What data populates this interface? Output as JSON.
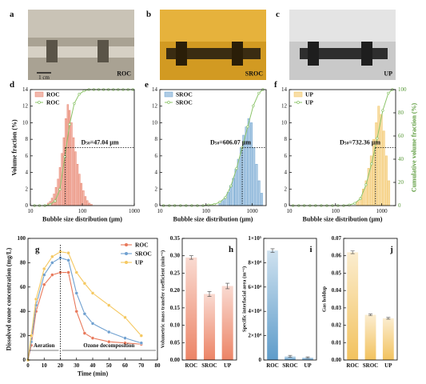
{
  "photos": [
    {
      "label": "a",
      "name": "ROC",
      "scale": "1 cm"
    },
    {
      "label": "b",
      "name": "SROC"
    },
    {
      "label": "c",
      "name": "UP"
    }
  ],
  "chart_data": [
    {
      "type": "histogram",
      "label": "d",
      "log_x": true,
      "xlim": [
        10,
        1000
      ],
      "xticks": [
        10,
        100,
        1000
      ],
      "ylim": [
        0,
        14
      ],
      "yticks": [
        0,
        2,
        4,
        6,
        8,
        10,
        12,
        14
      ],
      "y2lim": [
        0,
        100
      ],
      "ylabel": "Volume fraction (%)",
      "xlabel": "Bubble size distribution (μm)",
      "x": [
        22,
        24,
        26,
        28.5,
        31,
        34,
        37,
        40.5,
        44,
        48,
        52.5,
        57,
        62,
        68,
        74,
        81,
        88,
        96,
        105,
        115,
        125,
        137,
        150
      ],
      "series": [
        {
          "name": "ROC",
          "color": "#e8806a",
          "values": [
            0.3,
            0.5,
            0.9,
            1.4,
            2.2,
            3.2,
            4.6,
            6.3,
            8.2,
            10.5,
            12.2,
            11.5,
            10,
            8.2,
            6.5,
            5,
            3.8,
            2.7,
            1.8,
            1.1,
            0.6,
            0.3,
            0.15
          ]
        }
      ],
      "cumulative": {
        "name": "ROC",
        "color": "#8cc46a",
        "x": [
          12,
          15,
          19,
          24,
          30,
          37,
          46,
          57,
          70,
          87,
          108,
          134,
          166,
          206,
          256,
          318,
          395,
          490,
          610,
          760,
          940
        ],
        "values": [
          0,
          0,
          0,
          1,
          4,
          14,
          42,
          70,
          88,
          96,
          99,
          100,
          100,
          100,
          100,
          100,
          100,
          100,
          100,
          100,
          100
        ]
      },
      "d50": 47.04,
      "annotation": {
        "symbol": "D",
        "sub": "50",
        "text": "=47.04 μm"
      }
    },
    {
      "type": "histogram",
      "label": "e",
      "log_x": true,
      "xlim": [
        10,
        2000
      ],
      "xticks": [
        10,
        100,
        1000
      ],
      "ylim": [
        0,
        14
      ],
      "yticks": [
        0,
        2,
        4,
        6,
        8,
        10,
        12,
        14
      ],
      "y2lim": [
        0,
        100
      ],
      "xlabel": "Bubble size distribution (μm)",
      "x": [
        200,
        230,
        260,
        300,
        340,
        390,
        440,
        500,
        570,
        650,
        740,
        840,
        960,
        1090,
        1240,
        1410,
        1600
      ],
      "series": [
        {
          "name": "SROC",
          "color": "#6ea3cf",
          "values": [
            0.3,
            0.6,
            1,
            1.6,
            2.4,
            3.3,
            4.4,
            5.6,
            7,
            8.5,
            9.5,
            10.5,
            10,
            7,
            5,
            3,
            1.5
          ]
        }
      ],
      "cumulative": {
        "name": "SROC",
        "color": "#8cc46a",
        "x": [
          12,
          16,
          21,
          28,
          37,
          49,
          65,
          86,
          113,
          150,
          198,
          262,
          346,
          457,
          604,
          798,
          1054,
          1393,
          1700
        ],
        "values": [
          0,
          0,
          0,
          0,
          0,
          0,
          0,
          0,
          0.5,
          1,
          3,
          7,
          17,
          32,
          50,
          68,
          86,
          97,
          100
        ]
      },
      "d50": 606.07,
      "annotation": {
        "symbol": "D",
        "sub": "50",
        "text": "=606.07 μm"
      }
    },
    {
      "type": "histogram",
      "label": "f",
      "log_x": true,
      "xlim": [
        10,
        2000
      ],
      "xticks": [
        10,
        100,
        1000
      ],
      "ylim": [
        0,
        14
      ],
      "yticks": [
        0,
        2,
        4,
        6,
        8,
        10,
        12,
        14
      ],
      "y2lim": [
        0,
        100
      ],
      "y2ticks": [
        0,
        20,
        40,
        60,
        80,
        100
      ],
      "xlabel": "Bubble size distribution (μm)",
      "y2label": "Cumulative volume fraction (%)",
      "x": [
        300,
        350,
        400,
        460,
        520,
        590,
        670,
        760,
        860,
        980,
        1110,
        1260,
        1430
      ],
      "series": [
        {
          "name": "UP",
          "color": "#f2c25e",
          "values": [
            0.5,
            1,
            2,
            3,
            4.5,
            6,
            8,
            10,
            12,
            11,
            9,
            6,
            3
          ]
        }
      ],
      "cumulative": {
        "name": "UP",
        "color": "#8cc46a",
        "x": [
          12,
          16,
          21,
          28,
          37,
          49,
          65,
          86,
          113,
          150,
          198,
          262,
          346,
          457,
          604,
          798,
          1054,
          1393,
          1700
        ],
        "values": [
          0,
          0,
          0,
          0,
          0,
          0,
          0,
          0,
          0,
          0,
          0.5,
          2,
          6,
          18,
          36,
          58,
          82,
          97,
          100
        ]
      },
      "d50": 732.36,
      "annotation": {
        "symbol": "D",
        "sub": "50",
        "text": "=732.36 μm"
      }
    },
    {
      "type": "line",
      "label": "g",
      "xlim": [
        0,
        80
      ],
      "xticks": [
        0,
        10,
        20,
        30,
        40,
        50,
        60,
        70,
        80
      ],
      "ylim": [
        0,
        100
      ],
      "yticks": [
        0,
        20,
        40,
        60,
        80,
        100
      ],
      "xlabel": "Time (min)",
      "ylabel": "Dissolved ozone concentration (mg/L)",
      "legend": "upper right",
      "x": [
        0,
        2,
        5,
        10,
        15,
        20,
        25,
        30,
        35,
        40,
        50,
        60,
        70
      ],
      "series": [
        {
          "name": "ROC",
          "color": "#e8785a",
          "values": [
            0,
            12,
            40,
            62,
            70,
            72,
            72,
            40,
            22,
            18,
            15,
            14,
            13
          ]
        },
        {
          "name": "SROC",
          "color": "#6fa0d0",
          "values": [
            0,
            15,
            45,
            70,
            80,
            84,
            82,
            55,
            38,
            30,
            23,
            18,
            14
          ]
        },
        {
          "name": "UP",
          "color": "#f5c860",
          "values": [
            0,
            20,
            50,
            75,
            85,
            89,
            88,
            72,
            63,
            55,
            45,
            35,
            20
          ]
        }
      ],
      "phase_split": 20,
      "annotations": [
        "Aeration",
        "Ozone decomposition"
      ]
    },
    {
      "type": "bar",
      "label": "h",
      "categories": [
        "ROC",
        "SROC",
        "UP"
      ],
      "values": [
        0.295,
        0.19,
        0.213
      ],
      "errors": [
        0.005,
        0.007,
        0.008
      ],
      "color": "#ec8466",
      "ylim": [
        0,
        0.35
      ],
      "yticks": [
        {
          "value": 0,
          "label": "0.00"
        },
        {
          "value": 0.05,
          "label": "0.05"
        },
        {
          "value": 0.1,
          "label": "0.10"
        },
        {
          "value": 0.15,
          "label": "0.15"
        },
        {
          "value": 0.2,
          "label": "0.20"
        },
        {
          "value": 0.25,
          "label": "0.25"
        },
        {
          "value": 0.3,
          "label": "0.30"
        },
        {
          "value": 0.35,
          "label": "0.35"
        }
      ],
      "ylabel": "Volumetric mass transfer coefficient (min⁻¹)"
    },
    {
      "type": "bar",
      "label": "i",
      "categories": [
        "ROC",
        "SROC",
        "UP"
      ],
      "values": [
        90000,
        3000,
        2000
      ],
      "errors": [
        1500,
        800,
        600
      ],
      "color": "#5e9cca",
      "ylim": [
        0,
        100000
      ],
      "yticks": [
        0,
        {
          "value": 20000,
          "label": "2×10⁴"
        },
        {
          "value": 40000,
          "label": "4×10⁴"
        },
        {
          "value": 60000,
          "label": "6×10⁴"
        },
        {
          "value": 80000,
          "label": "8×10⁴"
        },
        {
          "value": 100000,
          "label": "1×10⁵"
        }
      ],
      "ylabel": "Specific interfacial area (m⁻¹)"
    },
    {
      "type": "bar",
      "label": "j",
      "categories": [
        "ROC",
        "SROC",
        "UP"
      ],
      "values": [
        0.062,
        0.026,
        0.024
      ],
      "errors": [
        0.0008,
        0.0005,
        0.0005
      ],
      "color": "#f2c25e",
      "ylim": [
        0,
        0.07
      ],
      "yticks": [
        {
          "value": 0,
          "label": "0.00"
        },
        {
          "value": 0.01,
          "label": "0.01"
        },
        {
          "value": 0.02,
          "label": "0.02"
        },
        {
          "value": 0.03,
          "label": "0.03"
        },
        {
          "value": 0.04,
          "label": "0.04"
        },
        {
          "value": 0.05,
          "label": "0.05"
        },
        {
          "value": 0.06,
          "label": "0.06"
        },
        {
          "value": 0.07,
          "label": "0.07"
        }
      ],
      "ylabel": "Gas holdup"
    }
  ]
}
